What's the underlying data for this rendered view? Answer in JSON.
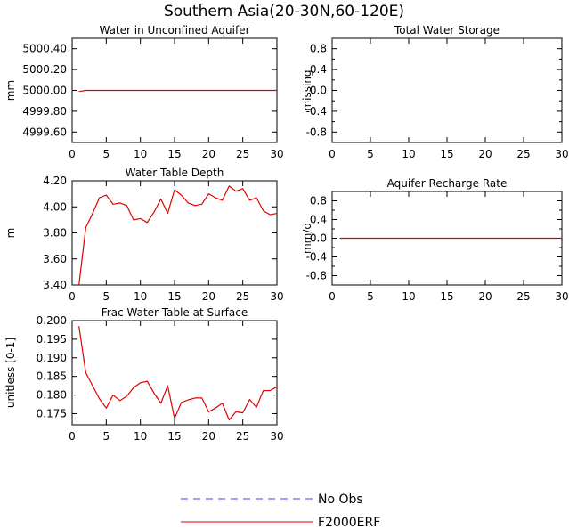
{
  "figure_title": "Southern Asia(20-30N,60-120E)",
  "colors": {
    "obs": "#4040ff",
    "model": "#e00000",
    "axis": "#000000",
    "background": "#ffffff"
  },
  "legend": {
    "obs_label": "No Obs",
    "model_label": "F2000ERF"
  },
  "chart_data": [
    {
      "type": "line",
      "title": "Water in Unconfined Aquifer",
      "ylabel": "mm",
      "xlim": [
        0,
        30
      ],
      "ylim": [
        4999.5,
        5000.5
      ],
      "xticks": [
        "0",
        "5",
        "10",
        "15",
        "20",
        "25",
        "30"
      ],
      "yticks": [
        {
          "value": 5000.4,
          "label": "5000.40"
        },
        {
          "value": 5000.2,
          "label": "5000.20"
        },
        {
          "value": 5000.0,
          "label": "5000.00"
        },
        {
          "value": 4999.8,
          "label": "4999.80"
        },
        {
          "value": 4999.6,
          "label": "4999.60"
        }
      ],
      "series": [
        {
          "name": "F2000ERF",
          "x": [
            1,
            2,
            3,
            4,
            5,
            6,
            7,
            8,
            9,
            10,
            11,
            12,
            13,
            14,
            15,
            16,
            17,
            18,
            19,
            20,
            21,
            22,
            23,
            24,
            25,
            26,
            27,
            28,
            29,
            30
          ],
          "values": [
            4999.99,
            5000.0,
            5000.0,
            5000.0,
            5000.0,
            5000.0,
            5000.0,
            5000.0,
            5000.0,
            5000.0,
            5000.0,
            5000.0,
            5000.0,
            5000.0,
            5000.0,
            5000.0,
            5000.0,
            5000.0,
            5000.0,
            5000.0,
            5000.0,
            5000.0,
            5000.0,
            5000.0,
            5000.0,
            5000.0,
            5000.0,
            5000.0,
            5000.0,
            5000.0
          ]
        }
      ]
    },
    {
      "type": "line",
      "title": "Total Water Storage",
      "ylabel": "missing",
      "xlim": [
        0,
        30
      ],
      "ylim": [
        -1.0,
        1.0
      ],
      "xticks": [
        "0",
        "5",
        "10",
        "15",
        "20",
        "25",
        "30"
      ],
      "yticks": [
        {
          "value": 0.8,
          "label": "0.8"
        },
        {
          "value": 0.4,
          "label": "0.4"
        },
        {
          "value": 0.0,
          "label": "0.0"
        },
        {
          "value": -0.4,
          "label": "-0.4"
        },
        {
          "value": -0.8,
          "label": "-0.8"
        }
      ],
      "minor_yticks": [
        0.6,
        0.2,
        -0.2,
        -0.6
      ],
      "series": []
    },
    {
      "type": "line",
      "title": "Water Table Depth",
      "ylabel": "m",
      "xlim": [
        0,
        30
      ],
      "ylim": [
        3.4,
        4.2
      ],
      "xticks": [
        "0",
        "5",
        "10",
        "15",
        "20",
        "25",
        "30"
      ],
      "yticks": [
        {
          "value": 4.2,
          "label": "4.20"
        },
        {
          "value": 4.0,
          "label": "4.00"
        },
        {
          "value": 3.8,
          "label": "3.80"
        },
        {
          "value": 3.6,
          "label": "3.60"
        },
        {
          "value": 3.4,
          "label": "3.40"
        }
      ],
      "series": [
        {
          "name": "F2000ERF",
          "x": [
            1,
            2,
            3,
            4,
            5,
            6,
            7,
            8,
            9,
            10,
            11,
            12,
            13,
            14,
            15,
            16,
            17,
            18,
            19,
            20,
            21,
            22,
            23,
            24,
            25,
            26,
            27,
            28,
            29,
            30
          ],
          "values": [
            3.4,
            3.84,
            3.95,
            4.07,
            4.09,
            4.02,
            4.03,
            4.01,
            3.9,
            3.91,
            3.88,
            3.96,
            4.06,
            3.95,
            4.13,
            4.09,
            4.03,
            4.01,
            4.02,
            4.1,
            4.07,
            4.05,
            4.16,
            4.12,
            4.14,
            4.05,
            4.07,
            3.97,
            3.94,
            3.95
          ]
        }
      ]
    },
    {
      "type": "line",
      "title": "Aquifer Recharge Rate",
      "ylabel": "mm/d",
      "xlim": [
        0,
        30
      ],
      "ylim": [
        -1.0,
        1.0
      ],
      "xticks": [
        "0",
        "5",
        "10",
        "15",
        "20",
        "25",
        "30"
      ],
      "yticks": [
        {
          "value": 0.8,
          "label": "0.8"
        },
        {
          "value": 0.4,
          "label": "0.4"
        },
        {
          "value": 0.0,
          "label": "0.0"
        },
        {
          "value": -0.4,
          "label": "-0.4"
        },
        {
          "value": -0.8,
          "label": "-0.8"
        }
      ],
      "minor_yticks": [
        0.6,
        0.2,
        -0.2,
        -0.6
      ],
      "series": [
        {
          "name": "F2000ERF",
          "x": [
            1,
            2,
            3,
            4,
            5,
            6,
            7,
            8,
            9,
            10,
            11,
            12,
            13,
            14,
            15,
            16,
            17,
            18,
            19,
            20,
            21,
            22,
            23,
            24,
            25,
            26,
            27,
            28,
            29,
            30
          ],
          "values": [
            0,
            0,
            0,
            0,
            0,
            0,
            0,
            0,
            0,
            0,
            0,
            0,
            0,
            0,
            0,
            0,
            0,
            0,
            0,
            0,
            0,
            0,
            0,
            0,
            0,
            0,
            0,
            0,
            0,
            0
          ]
        }
      ]
    },
    {
      "type": "line",
      "title": "Frac Water Table at Surface",
      "ylabel": "unitless [0-1]",
      "xlim": [
        0,
        30
      ],
      "ylim": [
        0.172,
        0.2
      ],
      "xticks": [
        "0",
        "5",
        "10",
        "15",
        "20",
        "25",
        "30"
      ],
      "yticks": [
        {
          "value": 0.2,
          "label": "0.200"
        },
        {
          "value": 0.195,
          "label": "0.195"
        },
        {
          "value": 0.19,
          "label": "0.190"
        },
        {
          "value": 0.185,
          "label": "0.185"
        },
        {
          "value": 0.18,
          "label": "0.180"
        },
        {
          "value": 0.175,
          "label": "0.175"
        }
      ],
      "series": [
        {
          "name": "F2000ERF",
          "x": [
            1,
            2,
            3,
            4,
            5,
            6,
            7,
            8,
            9,
            10,
            11,
            12,
            13,
            14,
            15,
            16,
            17,
            18,
            19,
            20,
            21,
            22,
            23,
            24,
            25,
            26,
            27,
            28,
            29,
            30
          ],
          "values": [
            0.1985,
            0.186,
            0.1825,
            0.179,
            0.1765,
            0.18,
            0.1785,
            0.1797,
            0.182,
            0.1833,
            0.1837,
            0.1805,
            0.1778,
            0.1825,
            0.1737,
            0.178,
            0.1787,
            0.1792,
            0.1792,
            0.1755,
            0.1765,
            0.1778,
            0.1733,
            0.1755,
            0.1752,
            0.1788,
            0.1767,
            0.1812,
            0.1812,
            0.1822
          ]
        }
      ]
    }
  ]
}
